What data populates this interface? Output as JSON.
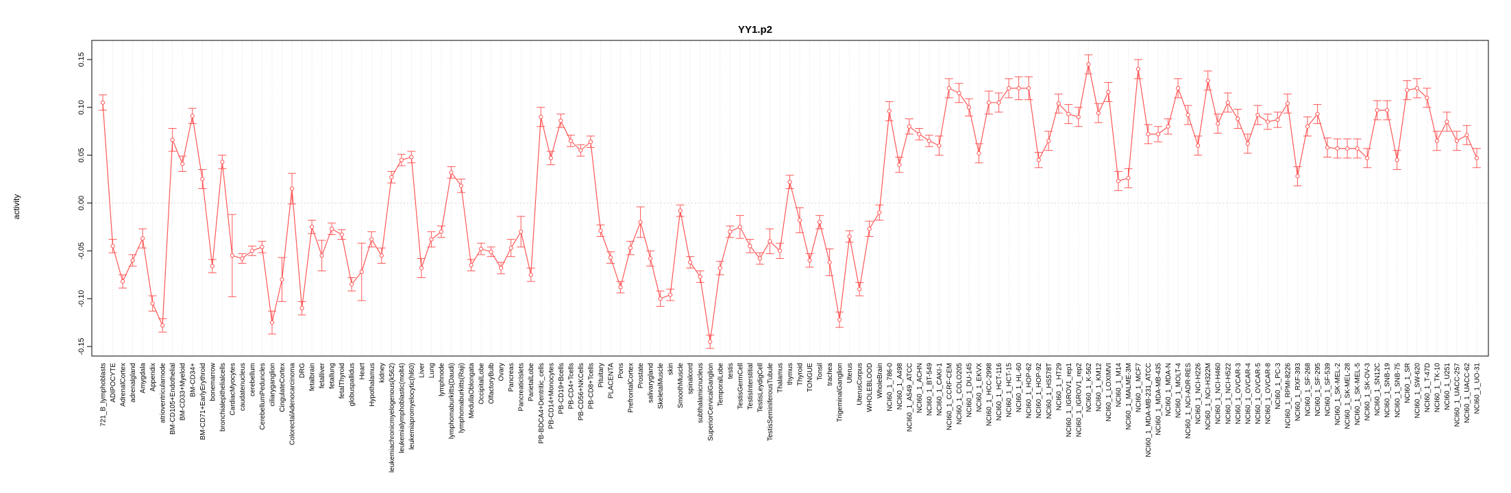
{
  "chart_data": {
    "type": "line",
    "title": "YY1.p2",
    "xlabel": "",
    "ylabel": "activity",
    "ylim": [
      -0.16,
      0.17
    ],
    "yticks": [
      -0.15,
      -0.1,
      -0.05,
      0.0,
      0.05,
      0.1,
      0.15
    ],
    "ytick_labels": [
      "-0.15",
      "-0.10",
      "-0.05",
      "0.00",
      "0.05",
      "0.10",
      "0.15"
    ],
    "grid": "vertical dotted per category, horizontal dotted at 0",
    "colors": {
      "line": "#ff5555",
      "grid": "#d3d3d3",
      "frame": "#000000"
    },
    "categories": [
      "721_B_lymphoblasts",
      "ADIPOCYTE",
      "AdrenalCortex",
      "adrenalgland",
      "Amygdala",
      "Appendix",
      "atrioventricularnode",
      "BM-CD105+Endothelial",
      "BM-CD33+Myeloid",
      "BM-CD34+",
      "BM-CD71+EarlyErythroid",
      "bonemarrow",
      "bronchialepithelialcells",
      "CardiacMyocytes",
      "caudatenucleus",
      "cerebellum",
      "CerebellumPeduncles",
      "ciliaryganglion",
      "CingulateCortex",
      "ColorectalAdenocarcinoma",
      "DRG",
      "fetalbrain",
      "fetalliver",
      "fetallung",
      "fetalThyroid",
      "globuspallidus",
      "Heart",
      "Hypothalamus",
      "kidney",
      "leukemiachronicmyelogenous(k562)",
      "leukemialymphoblastic(molt4)",
      "leukemiapromyelocytic(hl60)",
      "Liver",
      "Lung",
      "lymphnode",
      "lymphomaburkitts(Daudi)",
      "lymphomaburkitts(Raji)",
      "MedullaOblongata",
      "OccipitalLobe",
      "OlfactoryBulb",
      "Ovary",
      "Pancreas",
      "PancreaticIslets",
      "ParietalLobe",
      "PB-BDCA4+Dentritic_cells",
      "PB-CD14+Monocytes",
      "PB-CD19+Bcells",
      "PB-CD4+Tcells",
      "PB-CD56+NKCells",
      "PB-CD8+Tcells",
      "Pituitary",
      "PLACENTA",
      "Pons",
      "PrefrontalCortex",
      "Prostate",
      "salivarygland",
      "SkeletalMuscle",
      "skin",
      "SmoothMuscle",
      "spinalcord",
      "subthalamicnucleus",
      "SuperiorCervicalGanglion",
      "TemporalLobe",
      "testis",
      "TestisGermCell",
      "TestisInterstitial",
      "TestisLeydigCell",
      "TestisSeminiferousTubule",
      "Thalamus",
      "thymus",
      "Thyroid",
      "TONGUE",
      "Tonsil",
      "trachea",
      "TrigeminalGanglion",
      "Uterus",
      "UterusCorpus",
      "WHOLEBLOOD",
      "WholeBrain",
      "NCI60_1_786-0",
      "NCI60_1_A498",
      "NCI60_1_A549_ATCC",
      "NCI60_1_ACHN",
      "NCI60_1_BT-549",
      "NCI60_1_CAKI-1",
      "NCI60_1_CCRF-CEM",
      "NCI60_1_COLO205",
      "NCI60_1_DU-145",
      "NCI60_1_EKVX",
      "NCI60_1_HCC-2998",
      "NCI60_1_HCT-116",
      "NCI60_1_HCT-15",
      "NCI60_1_HL-60",
      "NCI60_1_HOP-62",
      "NCI60_1_HOP-92",
      "NCI60_1_HS578T",
      "NCI60_1_HT29",
      "NCI60_1_IGROV1_rep1",
      "NCI60_1_IGROV1_rep2",
      "NCI60_1_K-562",
      "NCI60_1_KM12",
      "NCI60_1_LOXIMVI",
      "NCI60_1_M14",
      "NCI60_1_MALME-3M",
      "NCI60_1_MCF7",
      "NCI60_1_MDA-MB-231_ATCC",
      "NCI60_1_MDA-MB-435",
      "NCI60_1_MDA-N",
      "NCI60_1_MOLT-4",
      "NCI60_1_NCI-ADR-RES",
      "NCI60_1_NCI-H226",
      "NCI60_1_NCI-H322M",
      "NCI60_1_NCI-H460",
      "NCI60_1_NCI-H522",
      "NCI60_1_OVCAR-3",
      "NCI60_1_OVCAR-4",
      "NCI60_1_OVCAR-5",
      "NCI60_1_OVCAR-8",
      "NCI60_1_PC-3",
      "NCI60_1_RPMI-8226",
      "NCI60_1_RXF-393",
      "NCI60_1_SF-268",
      "NCI60_1_SF-295",
      "NCI60_1_SF-539",
      "NCI60_1_SK-MEL-2",
      "NCI60_1_SK-MEL-28",
      "NCI60_1_SK-MEL-5",
      "NCI60_1_SK-OV-3",
      "NCI60_1_SN12C",
      "NCI60_1_SNB-19",
      "NCI60_1_SNB-75",
      "NCI60_1_SR",
      "NCI60_1_SW-620",
      "NCI60_1_T-47D",
      "NCI60_1_TK-10",
      "NCI60_1_U251",
      "NCI60_1_UACC-257",
      "NCI60_1_UACC-62",
      "NCI60_1_UO-31"
    ],
    "values": [
      0.105,
      -0.045,
      -0.082,
      -0.06,
      -0.037,
      -0.105,
      -0.128,
      0.066,
      0.041,
      0.091,
      0.025,
      -0.066,
      0.043,
      -0.055,
      -0.058,
      -0.05,
      -0.046,
      -0.125,
      -0.08,
      0.015,
      -0.11,
      -0.025,
      -0.055,
      -0.027,
      -0.033,
      -0.085,
      -0.072,
      -0.038,
      -0.055,
      0.027,
      0.045,
      0.048,
      -0.068,
      -0.038,
      -0.03,
      0.032,
      0.018,
      -0.065,
      -0.048,
      -0.051,
      -0.068,
      -0.047,
      -0.03,
      -0.075,
      0.09,
      0.047,
      0.086,
      0.065,
      0.055,
      0.064,
      -0.029,
      -0.057,
      -0.088,
      -0.047,
      -0.02,
      -0.058,
      -0.1,
      -0.096,
      -0.008,
      -0.062,
      -0.077,
      -0.145,
      -0.068,
      -0.03,
      -0.025,
      -0.045,
      -0.058,
      -0.04,
      -0.05,
      0.022,
      -0.018,
      -0.06,
      -0.02,
      -0.062,
      -0.122,
      -0.035,
      -0.09,
      -0.027,
      -0.01,
      0.096,
      0.04,
      0.08,
      0.072,
      0.065,
      0.06,
      0.12,
      0.115,
      0.1,
      0.052,
      0.105,
      0.105,
      0.12,
      0.12,
      0.12,
      0.045,
      0.065,
      0.104,
      0.093,
      0.09,
      0.145,
      0.094,
      0.116,
      0.023,
      0.026,
      0.14,
      0.072,
      0.072,
      0.08,
      0.12,
      0.092,
      0.06,
      0.128,
      0.083,
      0.105,
      0.088,
      0.062,
      0.092,
      0.085,
      0.087,
      0.104,
      0.028,
      0.08,
      0.093,
      0.058,
      0.057,
      0.057,
      0.057,
      0.047,
      0.097,
      0.097,
      0.045,
      0.118,
      0.12,
      0.11,
      0.065,
      0.085,
      0.065,
      0.071,
      0.047
    ],
    "errors": [
      0.008,
      0.007,
      0.007,
      0.006,
      0.01,
      0.008,
      0.007,
      0.012,
      0.008,
      0.008,
      0.01,
      0.007,
      0.007,
      0.043,
      0.005,
      0.005,
      0.006,
      0.012,
      0.023,
      0.016,
      0.007,
      0.007,
      0.016,
      0.006,
      0.005,
      0.007,
      0.03,
      0.008,
      0.008,
      0.006,
      0.006,
      0.006,
      0.01,
      0.008,
      0.006,
      0.006,
      0.007,
      0.006,
      0.006,
      0.005,
      0.006,
      0.009,
      0.016,
      0.007,
      0.01,
      0.007,
      0.007,
      0.006,
      0.006,
      0.006,
      0.006,
      0.006,
      0.006,
      0.007,
      0.016,
      0.008,
      0.008,
      0.006,
      0.006,
      0.006,
      0.006,
      0.007,
      0.007,
      0.006,
      0.012,
      0.007,
      0.006,
      0.013,
      0.008,
      0.007,
      0.013,
      0.007,
      0.007,
      0.014,
      0.008,
      0.006,
      0.007,
      0.008,
      0.008,
      0.01,
      0.008,
      0.008,
      0.006,
      0.006,
      0.01,
      0.01,
      0.01,
      0.009,
      0.01,
      0.012,
      0.01,
      0.01,
      0.012,
      0.012,
      0.008,
      0.01,
      0.01,
      0.01,
      0.01,
      0.01,
      0.01,
      0.01,
      0.01,
      0.01,
      0.01,
      0.01,
      0.008,
      0.008,
      0.01,
      0.01,
      0.01,
      0.01,
      0.01,
      0.01,
      0.01,
      0.01,
      0.01,
      0.008,
      0.008,
      0.01,
      0.01,
      0.01,
      0.01,
      0.01,
      0.01,
      0.01,
      0.01,
      0.01,
      0.01,
      0.01,
      0.01,
      0.01,
      0.01,
      0.01,
      0.01,
      0.01,
      0.01,
      0.01,
      0.01
    ]
  }
}
